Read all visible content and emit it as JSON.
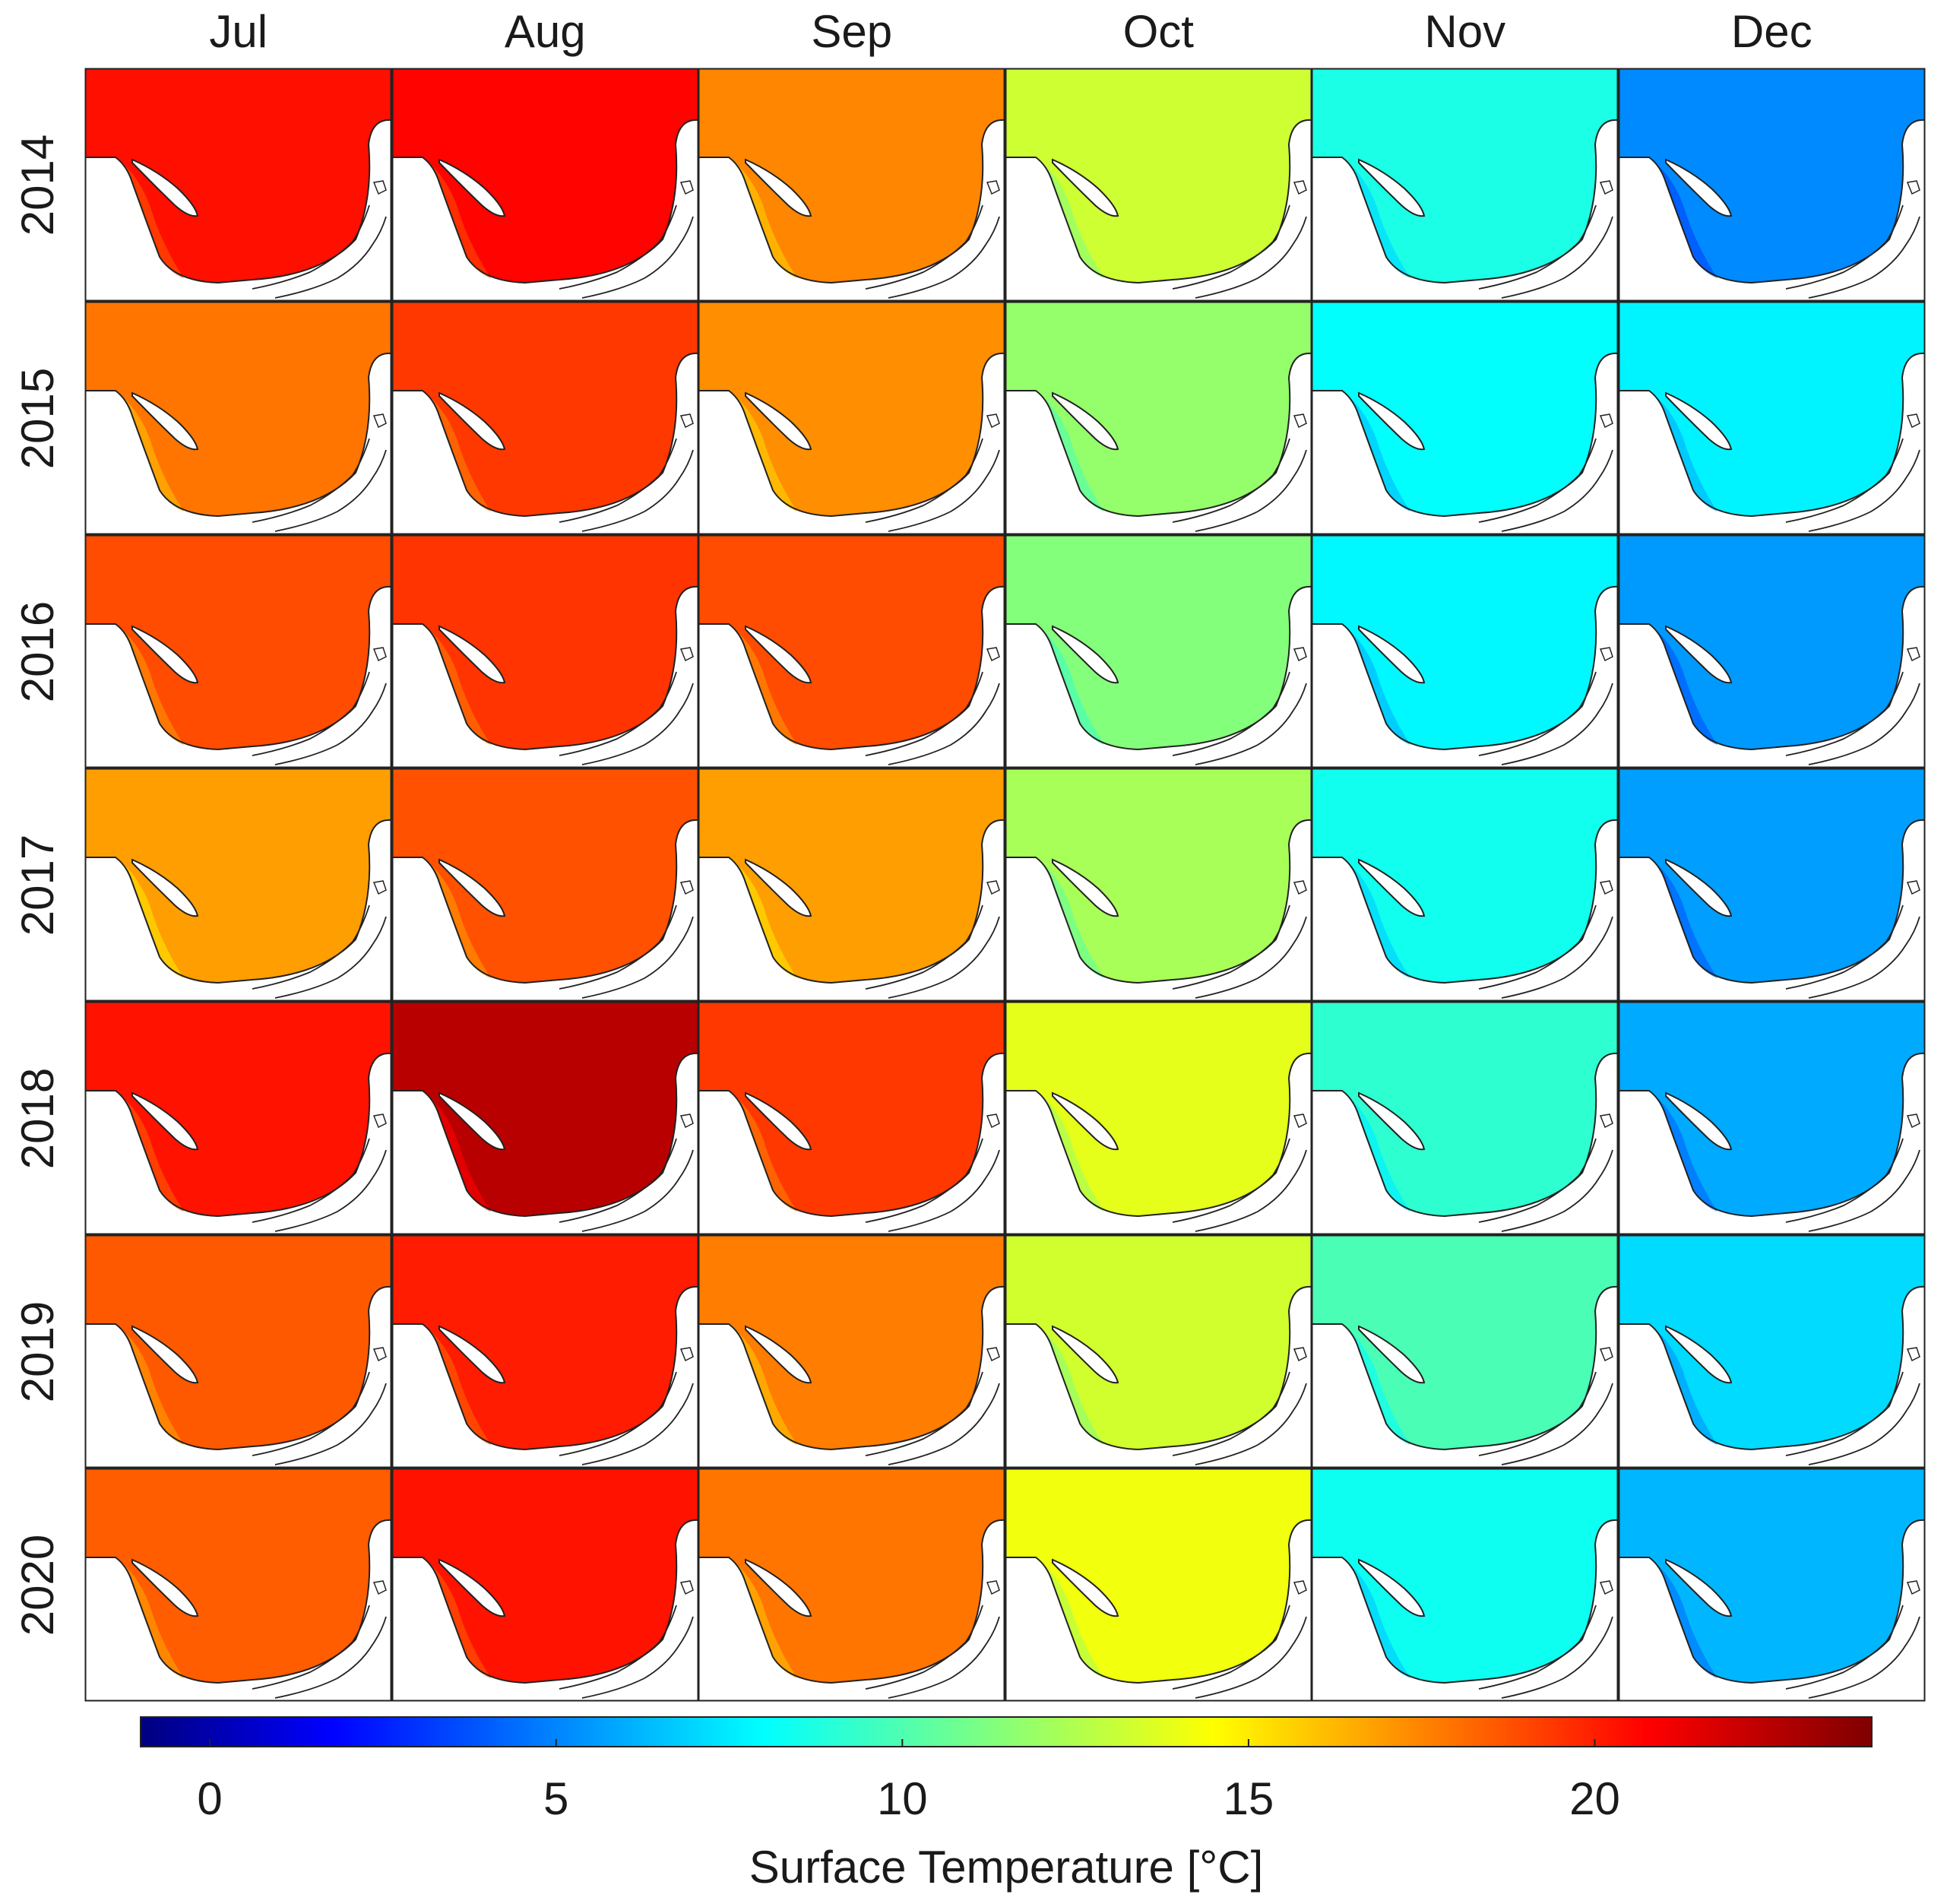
{
  "chart_data": {
    "type": "heatmap",
    "title": "",
    "columns": [
      "Jul",
      "Aug",
      "Sep",
      "Oct",
      "Nov",
      "Dec"
    ],
    "rows": [
      "2014",
      "2015",
      "2016",
      "2017",
      "2018",
      "2019",
      "2020"
    ],
    "values_unit": "°C",
    "mean_surface_temperature": [
      [
        20.5,
        20.8,
        17.6,
        13.4,
        9.0,
        5.5
      ],
      [
        18.0,
        19.5,
        17.4,
        12.0,
        8.4,
        8.1
      ],
      [
        19.0,
        19.6,
        19.0,
        11.6,
        8.2,
        5.9
      ],
      [
        17.0,
        18.9,
        17.0,
        12.5,
        8.8,
        6.0
      ],
      [
        20.4,
        22.6,
        19.5,
        14.0,
        9.5,
        6.3
      ],
      [
        18.7,
        20.2,
        17.8,
        13.5,
        10.2,
        7.5
      ],
      [
        18.6,
        20.4,
        18.0,
        14.3,
        8.7,
        6.6
      ]
    ],
    "colorbar": {
      "label": "Surface Temperature [°C]",
      "range": [
        -1,
        24
      ],
      "ticks": [
        0,
        5,
        10,
        15,
        20
      ],
      "tick_labels": [
        "0",
        "5",
        "10",
        "15",
        "20"
      ],
      "colormap": "jet"
    }
  }
}
